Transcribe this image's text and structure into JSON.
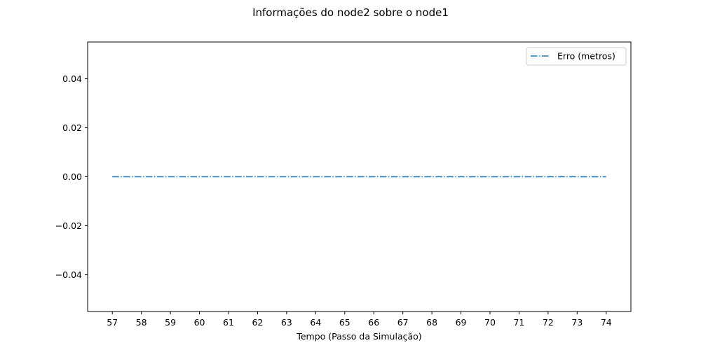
{
  "chart_data": {
    "type": "line",
    "title": "Informações do node2 sobre o node1",
    "xlabel": "Tempo (Passo da Simulação)",
    "ylabel": "",
    "xlim": [
      56.15,
      74.85
    ],
    "ylim": [
      -0.055,
      0.055
    ],
    "x_ticks": [
      57,
      58,
      59,
      60,
      61,
      62,
      63,
      64,
      65,
      66,
      67,
      68,
      69,
      70,
      71,
      72,
      73,
      74
    ],
    "y_ticks": [
      -0.04,
      -0.02,
      0.0,
      0.02,
      0.04
    ],
    "y_tick_labels": [
      "−0.04",
      "−0.02",
      "0.00",
      "0.02",
      "0.04"
    ],
    "grid": false,
    "legend_position": "upper right",
    "series": [
      {
        "name": "Erro (metros)",
        "color": "#1f77b4",
        "line_style": "dashdot",
        "x": [
          57,
          58,
          59,
          60,
          61,
          62,
          63,
          64,
          65,
          66,
          67,
          68,
          69,
          70,
          71,
          72,
          73,
          74
        ],
        "y": [
          0,
          0,
          0,
          0,
          0,
          0,
          0,
          0,
          0,
          0,
          0,
          0,
          0,
          0,
          0,
          0,
          0,
          0
        ]
      }
    ]
  }
}
